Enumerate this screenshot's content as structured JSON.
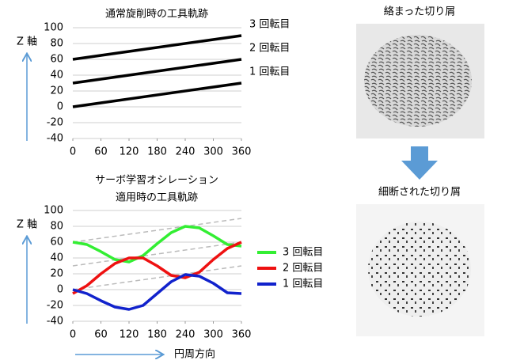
{
  "chart_data": [
    {
      "type": "line",
      "title": [
        "通常旋削時の工具軌跡"
      ],
      "y_label": "Z 軸",
      "x": [
        0,
        360
      ],
      "xlim": [
        0,
        360
      ],
      "xticks": [
        0,
        60,
        120,
        180,
        240,
        300,
        360
      ],
      "ylim": [
        -40,
        100
      ],
      "yticks": [
        -40,
        -20,
        0,
        20,
        40,
        60,
        80,
        100
      ],
      "grid": true,
      "direct_labels": true,
      "series": [
        {
          "name": "3 回転目",
          "color": "#000000",
          "values": [
            60,
            90
          ]
        },
        {
          "name": "2 回転目",
          "color": "#000000",
          "values": [
            30,
            60
          ]
        },
        {
          "name": "1 回転目",
          "color": "#000000",
          "values": [
            0,
            30
          ]
        }
      ]
    },
    {
      "type": "line",
      "title": [
        "サーボ学習オシレーション",
        "適用時の工具軌跡"
      ],
      "y_label": "Z 軸",
      "x_label": "円周方向",
      "x": [
        0,
        30,
        60,
        90,
        120,
        150,
        180,
        210,
        240,
        270,
        300,
        330,
        360
      ],
      "xlim": [
        0,
        360
      ],
      "xticks": [
        0,
        60,
        120,
        180,
        240,
        300,
        360
      ],
      "ylim": [
        -40,
        100
      ],
      "yticks": [
        -40,
        -20,
        0,
        20,
        40,
        60,
        80,
        100
      ],
      "grid": true,
      "legend": "right",
      "reference_x": [
        0,
        360
      ],
      "reference_color": "#bbbbbb",
      "reference_values": [
        [
          0,
          30
        ],
        [
          30,
          60
        ],
        [
          60,
          90
        ]
      ],
      "series": [
        {
          "name": "3 回転目",
          "color": "#33ee33",
          "values": [
            60,
            57,
            48,
            38,
            35,
            43,
            58,
            72,
            80,
            78,
            68,
            57,
            55
          ]
        },
        {
          "name": "2 回転目",
          "color": "#ee1111",
          "values": [
            -5,
            5,
            20,
            33,
            40,
            40,
            30,
            18,
            15,
            22,
            38,
            52,
            60
          ]
        },
        {
          "name": "1 回転目",
          "color": "#1122cc",
          "values": [
            0,
            -5,
            -14,
            -22,
            -25,
            -20,
            -5,
            10,
            19,
            17,
            8,
            -4,
            -5
          ]
        }
      ]
    }
  ],
  "images": [
    {
      "caption": "絡まった切り屑"
    },
    {
      "caption": "細断された切り屑"
    }
  ]
}
